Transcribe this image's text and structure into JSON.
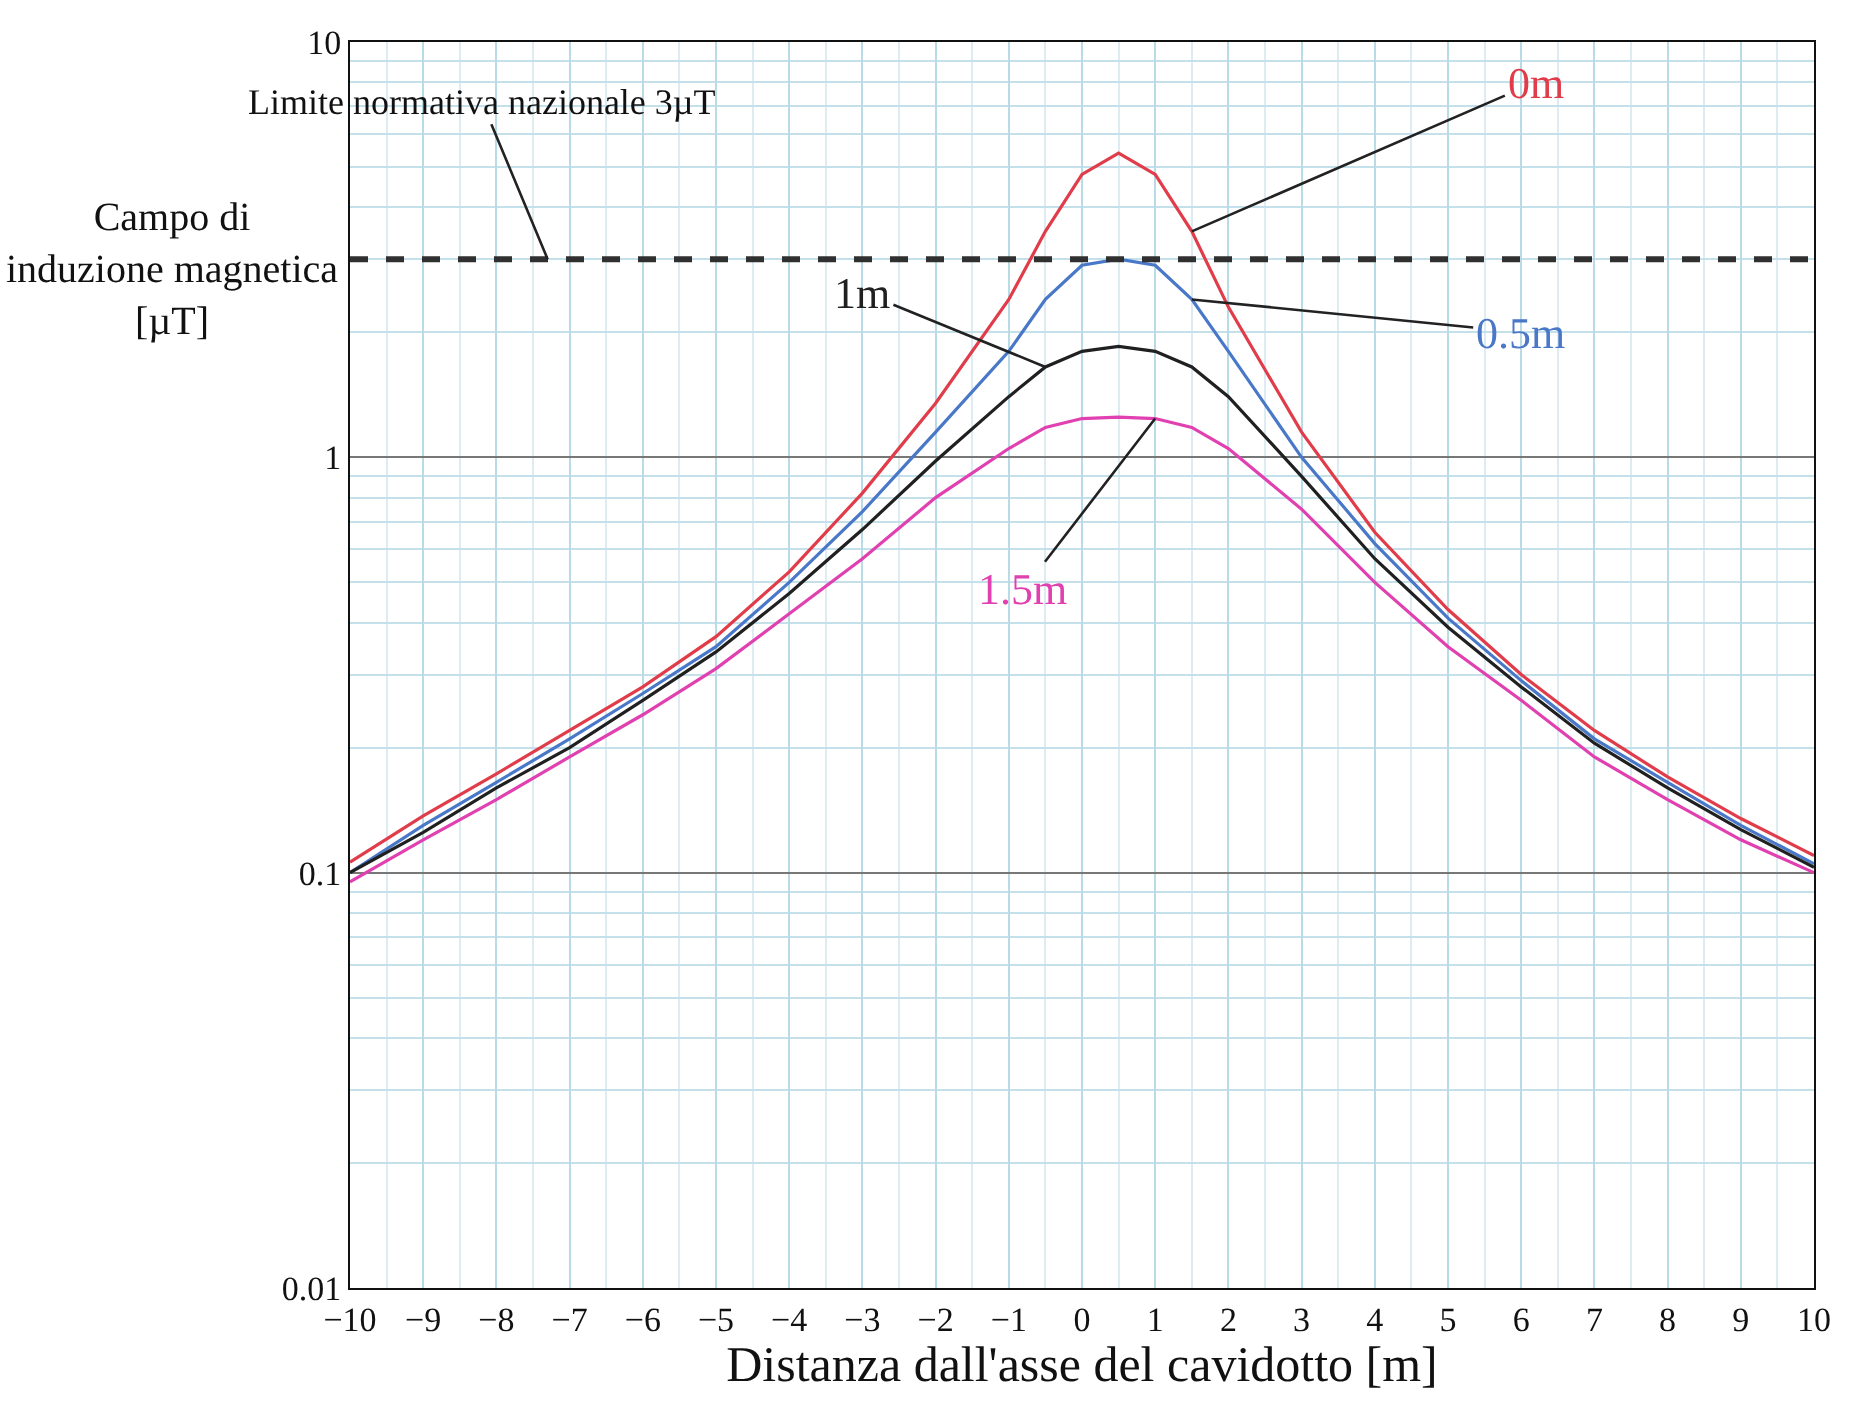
{
  "chart_data": {
    "type": "line",
    "xlabel": "Distanza dall'asse del cavidotto [m]",
    "ylabel": "Campo di induzione magnetica [µT]",
    "x": [
      -10,
      -9,
      -8,
      -7,
      -6,
      -5,
      -4,
      -3,
      -2,
      -1,
      -0.5,
      0,
      0.5,
      1,
      1.5,
      2,
      3,
      4,
      5,
      6,
      7,
      8,
      9,
      10
    ],
    "series": [
      {
        "name": "0m",
        "color": "#e03c4a",
        "values": [
          0.106,
          0.137,
          0.173,
          0.22,
          0.28,
          0.37,
          0.53,
          0.82,
          1.35,
          2.4,
          3.5,
          4.8,
          5.4,
          4.8,
          3.5,
          2.3,
          1.15,
          0.66,
          0.43,
          0.3,
          0.22,
          0.17,
          0.135,
          0.11
        ]
      },
      {
        "name": "0.5m",
        "color": "#4a78c8",
        "values": [
          0.1,
          0.13,
          0.165,
          0.21,
          0.27,
          0.35,
          0.5,
          0.74,
          1.15,
          1.8,
          2.4,
          2.9,
          3.0,
          2.9,
          2.4,
          1.8,
          1.0,
          0.62,
          0.41,
          0.29,
          0.21,
          0.165,
          0.13,
          0.105
        ]
      },
      {
        "name": "1m",
        "color": "#202020",
        "values": [
          0.1,
          0.125,
          0.16,
          0.2,
          0.26,
          0.34,
          0.47,
          0.67,
          0.98,
          1.4,
          1.65,
          1.8,
          1.85,
          1.8,
          1.65,
          1.4,
          0.9,
          0.57,
          0.39,
          0.28,
          0.205,
          0.16,
          0.127,
          0.103
        ]
      },
      {
        "name": "1.5m",
        "color": "#e040b0",
        "values": [
          0.095,
          0.12,
          0.15,
          0.19,
          0.24,
          0.31,
          0.42,
          0.57,
          0.8,
          1.05,
          1.18,
          1.24,
          1.25,
          1.24,
          1.18,
          1.05,
          0.75,
          0.5,
          0.35,
          0.26,
          0.19,
          0.15,
          0.12,
          0.1
        ]
      }
    ],
    "ref_lines": [
      {
        "axis": "y",
        "value": 3,
        "label": "Limite normativa nazionale 3µT",
        "color": "#303030",
        "line_style": "dashed"
      }
    ],
    "xlim": [
      -10,
      10
    ],
    "xticks": [
      -10,
      -9,
      -8,
      -7,
      -6,
      -5,
      -4,
      -3,
      -2,
      -1,
      0,
      1,
      2,
      3,
      4,
      5,
      6,
      7,
      8,
      9,
      10
    ],
    "ylim": [
      0.01,
      10
    ],
    "yticks": [
      0.01,
      0.1,
      1,
      10
    ],
    "log": "y",
    "grid": true,
    "legend": false,
    "marker": "none",
    "line_style": "solid"
  }
}
